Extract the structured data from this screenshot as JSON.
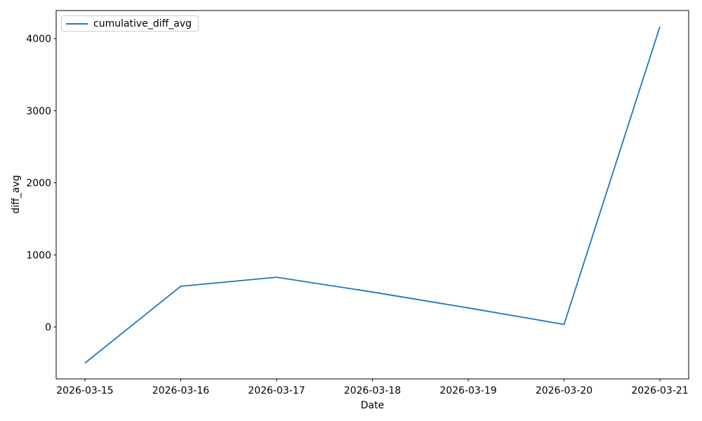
{
  "chart_data": {
    "type": "line",
    "title": "",
    "xlabel": "Date",
    "ylabel": "diff_avg",
    "x": [
      "2026-03-15",
      "2026-03-16",
      "2026-03-17",
      "2026-03-18",
      "2026-03-19",
      "2026-03-20",
      "2026-03-21"
    ],
    "series": [
      {
        "name": "cumulative_diff_avg",
        "color": "#1f77b4",
        "values": [
          -500,
          565,
          690,
          485,
          265,
          35,
          4165
        ]
      }
    ],
    "y_ticks": [
      0,
      1000,
      2000,
      3000,
      4000
    ],
    "xlim": [
      -0.3,
      6.3
    ],
    "ylim": [
      -720,
      4390
    ],
    "grid": false,
    "legend": {
      "position": "upper-left",
      "entries": [
        "cumulative_diff_avg"
      ]
    },
    "colors": {
      "line": "#1f77b4",
      "spine": "#000000",
      "text": "#000000",
      "legend_border": "#cccccc",
      "background": "#ffffff"
    }
  }
}
